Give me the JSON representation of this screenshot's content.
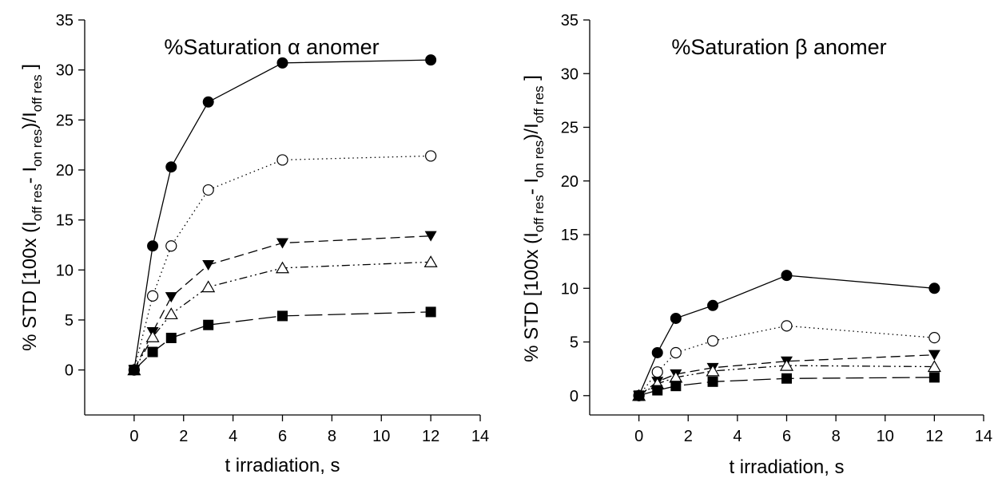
{
  "chart_data": [
    {
      "type": "line",
      "title": "%Saturation α anomer",
      "xlabel": "t irradiation, s",
      "ylabel": "% STD   [100x (I_off res - I_on res)/I_off res ]",
      "xlim": [
        -2,
        14
      ],
      "ylim": [
        -4.5,
        35
      ],
      "xticks": [
        0,
        2,
        4,
        6,
        8,
        10,
        12,
        14
      ],
      "yticks": [
        0,
        5,
        10,
        15,
        20,
        25,
        30,
        35
      ],
      "grid": false,
      "series": [
        {
          "marker": "filled-circle",
          "line": "solid",
          "x": [
            0,
            0.75,
            1.5,
            3,
            6,
            12
          ],
          "y": [
            0,
            12.4,
            20.3,
            26.8,
            30.7,
            31.0
          ]
        },
        {
          "marker": "open-circle",
          "line": "dotted",
          "x": [
            0,
            0.75,
            1.5,
            3,
            6,
            12
          ],
          "y": [
            0,
            7.4,
            12.4,
            18.0,
            21.0,
            21.4
          ]
        },
        {
          "marker": "filled-triangle-down",
          "line": "dashed",
          "x": [
            0,
            0.75,
            1.5,
            3,
            6,
            12
          ],
          "y": [
            0,
            3.8,
            7.3,
            10.5,
            12.7,
            13.4
          ]
        },
        {
          "marker": "open-triangle-up",
          "line": "dash-dot-dot",
          "x": [
            0,
            0.75,
            1.5,
            3,
            6,
            12
          ],
          "y": [
            0,
            3.3,
            5.6,
            8.3,
            10.2,
            10.8
          ]
        },
        {
          "marker": "filled-square",
          "line": "long-dash",
          "x": [
            0,
            0.75,
            1.5,
            3,
            6,
            12
          ],
          "y": [
            0,
            1.8,
            3.2,
            4.5,
            5.4,
            5.8
          ]
        }
      ]
    },
    {
      "type": "line",
      "title": "%Saturation β anomer",
      "xlabel": "t irradiation, s",
      "ylabel": "% STD   [100x (I_off res - I_on res)/I_off res ]",
      "xlim": [
        -2,
        14
      ],
      "ylim": [
        -1.8,
        35
      ],
      "xticks": [
        0,
        2,
        4,
        6,
        8,
        10,
        12,
        14
      ],
      "yticks": [
        0,
        5,
        10,
        15,
        20,
        25,
        30,
        35
      ],
      "grid": false,
      "series": [
        {
          "marker": "filled-circle",
          "line": "solid",
          "x": [
            0,
            0.75,
            1.5,
            3,
            6,
            12
          ],
          "y": [
            0,
            4.0,
            7.2,
            8.4,
            11.2,
            10.0
          ]
        },
        {
          "marker": "open-circle",
          "line": "dotted",
          "x": [
            0,
            0.75,
            1.5,
            3,
            6,
            12
          ],
          "y": [
            0,
            2.2,
            4.0,
            5.1,
            6.5,
            5.4
          ]
        },
        {
          "marker": "filled-triangle-down",
          "line": "dashed",
          "x": [
            0,
            0.75,
            1.5,
            3,
            6,
            12
          ],
          "y": [
            0,
            1.3,
            2.0,
            2.6,
            3.2,
            3.8
          ]
        },
        {
          "marker": "open-triangle-up",
          "line": "dash-dot-dot",
          "x": [
            0,
            0.75,
            1.5,
            3,
            6,
            12
          ],
          "y": [
            0,
            1.1,
            1.7,
            2.3,
            2.8,
            2.7
          ]
        },
        {
          "marker": "filled-square",
          "line": "long-dash",
          "x": [
            0,
            0.75,
            1.5,
            3,
            6,
            12
          ],
          "y": [
            0,
            0.5,
            0.9,
            1.3,
            1.6,
            1.7
          ]
        }
      ]
    }
  ],
  "ylabel_parts": {
    "prefix": "% STD   [100x (I",
    "sub_off": "off res",
    "minus": "- I",
    "sub_on": "on res",
    "slash": ")/I",
    "sub_off2": "off res",
    "suffix": " ]"
  }
}
